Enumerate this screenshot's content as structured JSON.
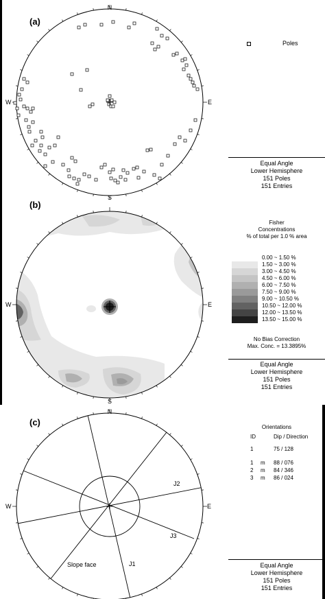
{
  "panels": {
    "a": {
      "label": "(a)"
    },
    "b": {
      "label": "(b)"
    },
    "c": {
      "label": "(c)"
    }
  },
  "compass": {
    "n": "N",
    "s": "S",
    "e": "E",
    "w": "W"
  },
  "poles_legend": {
    "label": "Poles"
  },
  "projection_info": {
    "line1": "Equal Angle",
    "line2": "Lower Hemisphere",
    "line3": "151 Poles",
    "line4": "151 Entries"
  },
  "fisher": {
    "title1": "Fisher",
    "title2": "Concentrations",
    "title3": "% of total per 1.0 % area",
    "scale": [
      {
        "range": "0.00 ~  1.50 %",
        "color": "#ffffff"
      },
      {
        "range": "1.50 ~  3.00 %",
        "color": "#e8e8e8"
      },
      {
        "range": "3.00 ~  4.50 %",
        "color": "#d6d6d6"
      },
      {
        "range": "4.50 ~  6.00 %",
        "color": "#c4c4c4"
      },
      {
        "range": "6.00 ~  7.50 %",
        "color": "#b0b0b0"
      },
      {
        "range": "7.50 ~  9.00 %",
        "color": "#9a9a9a"
      },
      {
        "range": "9.00 ~  10.50 %",
        "color": "#808080"
      },
      {
        "range": "10.50 ~  12.00 %",
        "color": "#626262"
      },
      {
        "range": "12.00 ~  13.50 %",
        "color": "#444444"
      },
      {
        "range": "13.50 ~  15.00 %",
        "color": "#1e1e1e"
      }
    ],
    "no_bias": "No Bias Correction",
    "max_conc": "Max. Conc. = 13.3895%"
  },
  "orientations": {
    "title": "Orientations",
    "col_id": "ID",
    "col_dipdir": "Dip / Direction",
    "rows": [
      {
        "id": "1",
        "m": "",
        "value": "75  /  128"
      },
      {
        "id": "1",
        "m": "m",
        "value": "88  /  076"
      },
      {
        "id": "2",
        "m": "m",
        "value": "84  /  346"
      },
      {
        "id": "3",
        "m": "m",
        "value": "86  /  024"
      }
    ]
  },
  "plane_labels": {
    "j1": "J1",
    "j2": "J2",
    "j3": "J3",
    "slope": "Slope face"
  }
}
